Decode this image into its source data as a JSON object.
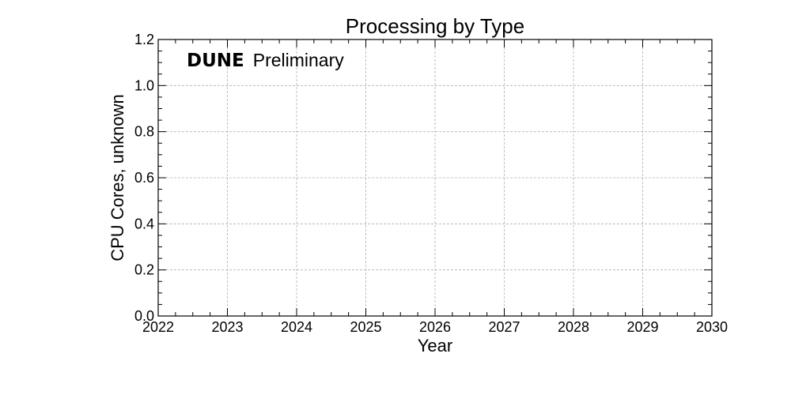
{
  "chart_data": {
    "type": "bar",
    "title": "Processing by Type",
    "xlabel": "Year",
    "ylabel": "CPU Cores, unknown",
    "xlim": [
      2022,
      2030
    ],
    "ylim": [
      0.0,
      1.2
    ],
    "x_ticks": [
      "2022",
      "2023",
      "2024",
      "2025",
      "2026",
      "2027",
      "2028",
      "2029",
      "2030"
    ],
    "y_ticks": [
      "0.0",
      "0.2",
      "0.4",
      "0.6",
      "0.8",
      "1.0",
      "1.2"
    ],
    "series": [],
    "grid": true,
    "annotation": {
      "bold": "DUNE",
      "normal": "Preliminary"
    }
  }
}
